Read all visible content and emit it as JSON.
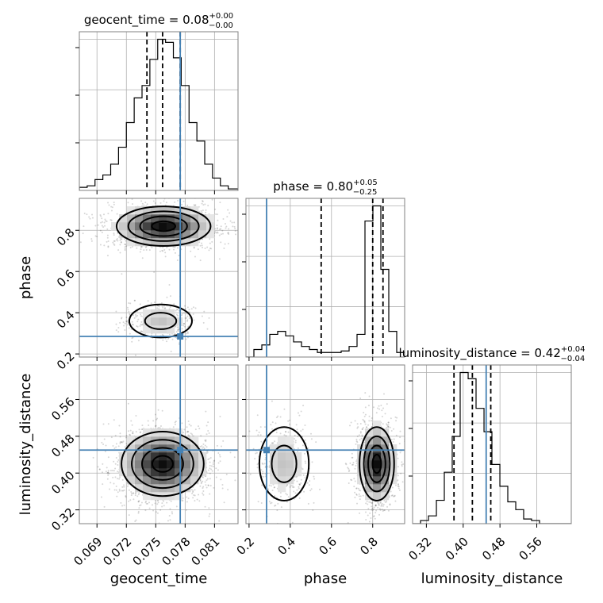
{
  "chart_data": {
    "type": "corner",
    "parameters": [
      "geocent_time",
      "phase",
      "luminosity_distance"
    ],
    "truths": {
      "geocent_time": 0.0775,
      "phase": 0.285,
      "luminosity_distance": 0.45
    },
    "titles": [
      {
        "param": "geocent_time",
        "prefix": "geocent_time = 0.08",
        "upper": "+0.00",
        "lower": "−0.00"
      },
      {
        "param": "phase",
        "prefix": "phase = 0.80",
        "upper": "+0.05",
        "lower": "−0.25"
      },
      {
        "param": "luminosity_distance",
        "prefix": "luminosity_distance = 0.42",
        "upper": "+0.04",
        "lower": "−0.04"
      }
    ],
    "axes": {
      "geocent_time": {
        "label": "geocent_time",
        "range": [
          0.0672,
          0.0834
        ],
        "ticks": [
          0.069,
          0.072,
          0.075,
          0.078,
          0.081
        ],
        "tick_labels": [
          "0.069",
          "0.072",
          "0.075",
          "0.078",
          "0.081"
        ]
      },
      "phase": {
        "label": "phase",
        "range": [
          0.185,
          0.955
        ],
        "ticks": [
          0.2,
          0.4,
          0.6,
          0.8
        ],
        "tick_labels": [
          "0.2",
          "0.4",
          "0.6",
          "0.8"
        ]
      },
      "luminosity_distance": {
        "label": "luminosity_distance",
        "range": [
          0.29,
          0.635
        ],
        "ticks": [
          0.32,
          0.4,
          0.48,
          0.56
        ],
        "tick_labels": [
          "0.32",
          "0.40",
          "0.48",
          "0.56"
        ]
      }
    },
    "marginals": [
      {
        "param": "geocent_time",
        "quantiles": [
          0.0741,
          0.0757,
          0.0775
        ],
        "hist": {
          "edges": [
            0.0672,
            0.068,
            0.0688,
            0.0696,
            0.0704,
            0.0712,
            0.072,
            0.0728,
            0.0736,
            0.0744,
            0.0752,
            0.076,
            0.0768,
            0.0776,
            0.0784,
            0.0792,
            0.08,
            0.0808,
            0.0816,
            0.0824,
            0.0834
          ],
          "counts": [
            2,
            3,
            7,
            10,
            17,
            28,
            44,
            60,
            68,
            85,
            98,
            96,
            86,
            68,
            44,
            32,
            17,
            8,
            3,
            1
          ]
        }
      },
      {
        "param": "phase",
        "quantiles": [
          0.55,
          0.8,
          0.85
        ],
        "hist": {
          "edges": [
            0.185,
            0.2235,
            0.262,
            0.3005,
            0.339,
            0.3775,
            0.416,
            0.4545,
            0.493,
            0.5315,
            0.57,
            0.6085,
            0.647,
            0.6855,
            0.724,
            0.7625,
            0.801,
            0.8395,
            0.878,
            0.9165,
            0.955
          ],
          "counts": [
            0,
            5,
            8,
            15,
            17,
            14,
            10,
            7,
            5,
            3,
            3,
            3,
            4,
            7,
            15,
            90,
            100,
            58,
            17,
            3
          ]
        }
      },
      {
        "param": "luminosity_distance",
        "quantiles": [
          0.38,
          0.42,
          0.46
        ],
        "hist": {
          "edges": [
            0.29,
            0.3073,
            0.3245,
            0.3418,
            0.359,
            0.3762,
            0.3935,
            0.4108,
            0.428,
            0.4453,
            0.4625,
            0.4798,
            0.497,
            0.5143,
            0.5315,
            0.5487,
            0.566,
            0.5833,
            0.6005,
            0.6178,
            0.635
          ],
          "counts": [
            0,
            2,
            5,
            15,
            33,
            56,
            97,
            93,
            74,
            59,
            38,
            24,
            14,
            9,
            3,
            2,
            0,
            0,
            0,
            0
          ]
        }
      }
    ],
    "pairs": [
      {
        "x": "geocent_time",
        "y": "phase",
        "modes": [
          {
            "cx": 0.0758,
            "cy": 0.82,
            "sx": 0.0024,
            "sy": 0.048,
            "weight": 0.8
          },
          {
            "cx": 0.0755,
            "cy": 0.36,
            "sx": 0.0016,
            "sy": 0.04,
            "weight": 0.2
          }
        ]
      },
      {
        "x": "geocent_time",
        "y": "luminosity_distance",
        "modes": [
          {
            "cx": 0.0757,
            "cy": 0.42,
            "sx": 0.0021,
            "sy": 0.035,
            "weight": 1.0
          }
        ]
      },
      {
        "x": "phase",
        "y": "luminosity_distance",
        "modes": [
          {
            "cx": 0.82,
            "cy": 0.42,
            "sx": 0.042,
            "sy": 0.04,
            "weight": 0.8
          },
          {
            "cx": 0.37,
            "cy": 0.42,
            "sx": 0.06,
            "sy": 0.04,
            "weight": 0.2
          }
        ]
      }
    ],
    "grid": true,
    "colors": {
      "truth": "#4682b4",
      "hist": "#000000",
      "density": "#000000",
      "points": "#000000"
    }
  }
}
